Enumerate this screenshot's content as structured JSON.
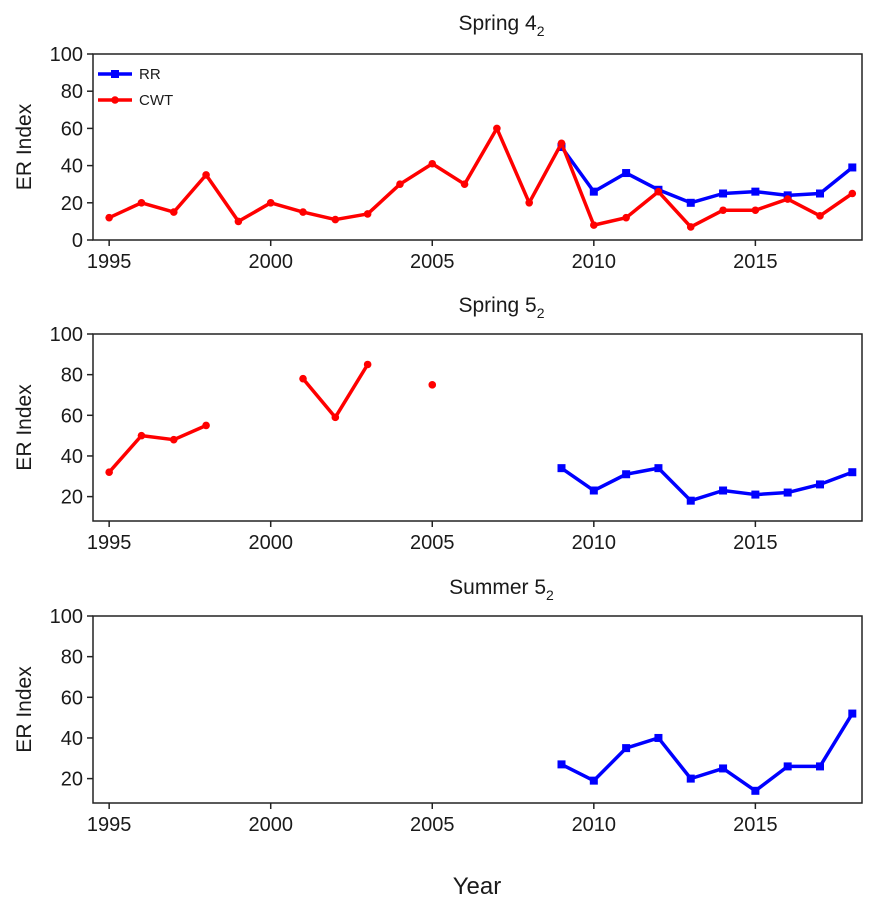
{
  "figure": {
    "xlabel": "Year",
    "colors": {
      "RR": "#0000ff",
      "CWT": "#ff0000"
    }
  },
  "chart_data": [
    {
      "type": "line",
      "title": "Spring 4",
      "title_subscript": "2",
      "ylabel": "ER Index",
      "xlabel": "",
      "xlim": [
        1994.5,
        2018.3
      ],
      "ylim": [
        0,
        100
      ],
      "xticks": [
        1995,
        2000,
        2005,
        2010,
        2015
      ],
      "yticks": [
        0,
        20,
        40,
        60,
        80,
        100
      ],
      "legend": {
        "position": "top-left",
        "entries": [
          "RR",
          "CWT"
        ]
      },
      "series": [
        {
          "name": "RR",
          "color": "#0000ff",
          "marker": "square",
          "x": [
            2009,
            2010,
            2011,
            2012,
            2013,
            2014,
            2015,
            2016,
            2017,
            2018
          ],
          "y": [
            50,
            26,
            36,
            27,
            20,
            25,
            26,
            24,
            25,
            39
          ]
        },
        {
          "name": "CWT",
          "color": "#ff0000",
          "marker": "circle",
          "x": [
            1995,
            1996,
            1997,
            1998,
            1999,
            2000,
            2001,
            2002,
            2003,
            2004,
            2005,
            2006,
            2007,
            2008,
            2009,
            2010,
            2011,
            2012,
            2013,
            2014,
            2015,
            2016,
            2017,
            2018
          ],
          "y": [
            12,
            20,
            15,
            35,
            10,
            20,
            15,
            11,
            14,
            30,
            41,
            30,
            60,
            20,
            52,
            8,
            12,
            26,
            7,
            16,
            16,
            22,
            13,
            25
          ]
        }
      ]
    },
    {
      "type": "line",
      "title": "Spring 5",
      "title_subscript": "2",
      "ylabel": "ER Index",
      "xlabel": "",
      "xlim": [
        1994.5,
        2018.3
      ],
      "ylim": [
        8,
        100
      ],
      "xticks": [
        1995,
        2000,
        2005,
        2010,
        2015
      ],
      "yticks": [
        20,
        40,
        60,
        80,
        100
      ],
      "series": [
        {
          "name": "RR",
          "color": "#0000ff",
          "marker": "square",
          "x": [
            2009,
            2010,
            2011,
            2012,
            2013,
            2014,
            2015,
            2016,
            2017,
            2018
          ],
          "y": [
            34,
            23,
            31,
            34,
            18,
            23,
            21,
            22,
            26,
            32
          ]
        },
        {
          "name": "CWT",
          "color": "#ff0000",
          "marker": "circle",
          "x": [
            1995,
            1996,
            1997,
            1998,
            1999,
            2000,
            2001,
            2002,
            2003,
            2004,
            2005
          ],
          "y": [
            32,
            50,
            48,
            55,
            null,
            null,
            78,
            59,
            85,
            null,
            75
          ]
        }
      ]
    },
    {
      "type": "line",
      "title": "Summer 5",
      "title_subscript": "2",
      "ylabel": "ER Index",
      "xlabel": "",
      "xlim": [
        1994.5,
        2018.3
      ],
      "ylim": [
        8,
        100
      ],
      "xticks": [
        1995,
        2000,
        2005,
        2010,
        2015
      ],
      "yticks": [
        20,
        40,
        60,
        80,
        100
      ],
      "series": [
        {
          "name": "RR",
          "color": "#0000ff",
          "marker": "square",
          "x": [
            2009,
            2010,
            2011,
            2012,
            2013,
            2014,
            2015,
            2016,
            2017,
            2018
          ],
          "y": [
            27,
            19,
            35,
            40,
            20,
            25,
            14,
            26,
            26,
            52
          ]
        }
      ]
    }
  ]
}
